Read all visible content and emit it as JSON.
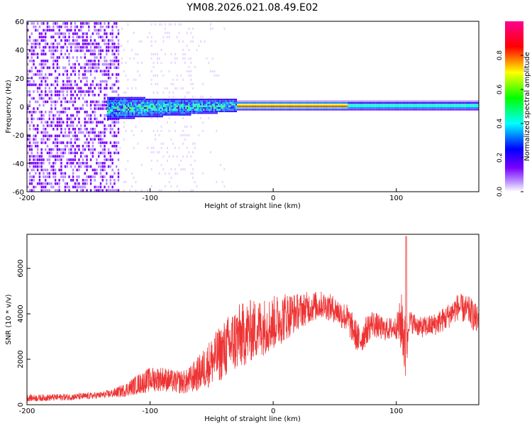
{
  "figure": {
    "title": "YM08.2026.021.08.49.E02"
  },
  "chart_data": [
    {
      "type": "heatmap",
      "xlabel": "Height of straight line (km)",
      "ylabel": "Frequency (Hz)",
      "xlim": [
        -200,
        167
      ],
      "ylim": [
        -60,
        60
      ],
      "xticks": [
        -200,
        -100,
        0,
        100
      ],
      "yticks": [
        -60,
        -40,
        -20,
        0,
        20,
        40,
        60
      ],
      "colorbar": {
        "label": "Normalized spectral amplitude",
        "range": [
          0,
          1
        ],
        "ticks": [
          "0.0",
          "0.2",
          "0.4",
          "0.6",
          "0.8"
        ],
        "colormap": [
          "#ffffff",
          "#7a00ff",
          "#0000ff",
          "#00ffff",
          "#00ff00",
          "#ffff00",
          "#ff0000",
          "#ff00aa"
        ]
      },
      "grid": false,
      "description_of_structure": "noise region x<-125, broadband energy; narrow band centered near 0 Hz from -130 to 167 km, band strongest between -20 and 60 km"
    },
    {
      "type": "line",
      "xlabel": "Height of straight line (km)",
      "ylabel": "SNR (10 * v/v)",
      "xlim": [
        -200,
        167
      ],
      "ylim": [
        0,
        7500
      ],
      "xticks": [
        -200,
        -100,
        0,
        100
      ],
      "yticks": [
        0,
        2000,
        4000,
        6000
      ],
      "grid": false,
      "series": [
        {
          "color": "#ee3333",
          "x": [
            -200,
            -190,
            -180,
            -170,
            -160,
            -150,
            -140,
            -130,
            -120,
            -110,
            -100,
            -90,
            -80,
            -70,
            -60,
            -50,
            -40,
            -30,
            -20,
            -10,
            0,
            10,
            20,
            30,
            40,
            50,
            60,
            70,
            80,
            90,
            100,
            105,
            108,
            110,
            120,
            130,
            140,
            150,
            160,
            167
          ],
          "values": [
            300,
            300,
            320,
            330,
            350,
            380,
            420,
            500,
            650,
            900,
            1100,
            1150,
            1000,
            1000,
            1400,
            1900,
            2400,
            2900,
            3200,
            3400,
            3600,
            3900,
            4100,
            4300,
            4400,
            4200,
            3800,
            2800,
            3600,
            3300,
            3400,
            3600,
            2000,
            3700,
            3400,
            3500,
            3800,
            4300,
            4100,
            3600
          ],
          "envelope_amplitude": [
            150,
            150,
            150,
            150,
            150,
            150,
            150,
            200,
            300,
            450,
            550,
            550,
            500,
            550,
            800,
            1100,
            1300,
            1500,
            1400,
            1300,
            1200,
            1100,
            800,
            700,
            600,
            600,
            650,
            700,
            600,
            500,
            500,
            1500,
            1600,
            500,
            450,
            500,
            550,
            600,
            650,
            700
          ]
        }
      ]
    }
  ]
}
